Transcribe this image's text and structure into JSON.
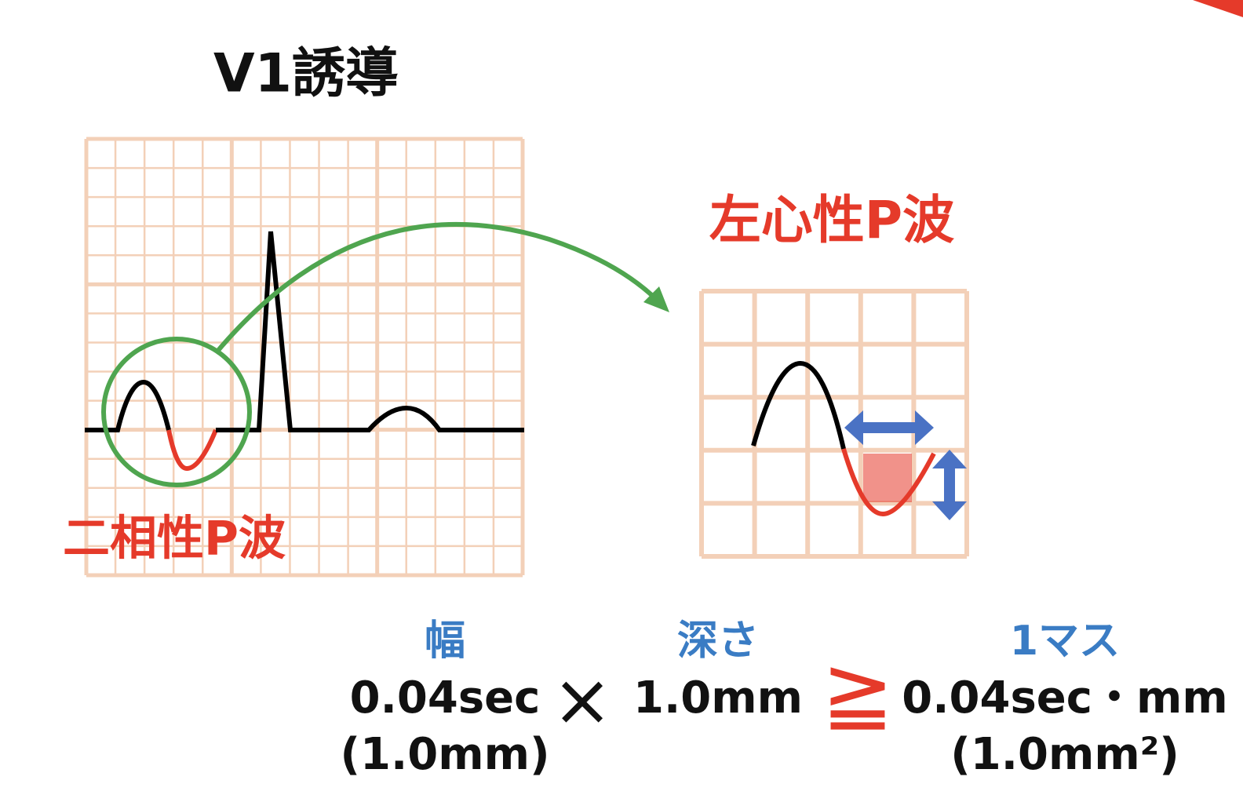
{
  "title": "V1誘導",
  "left_panel": {
    "label": "二相性P波"
  },
  "right_panel": {
    "label": "左心性P波"
  },
  "formula": {
    "width": {
      "heading": "幅",
      "value": "0.04sec",
      "note": "(1.0mm)"
    },
    "times": "×",
    "depth": {
      "heading": "深さ",
      "value": "1.0mm"
    },
    "geq": "≧",
    "unit": {
      "heading": "1マス",
      "value": "0.04sec・mm",
      "note": "(1.0mm²)"
    }
  }
}
